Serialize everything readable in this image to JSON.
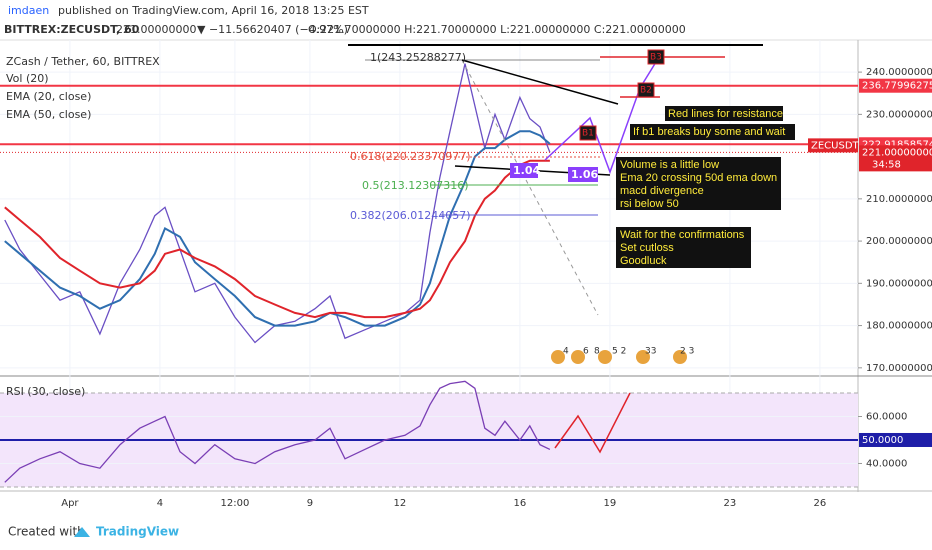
{
  "header": {
    "author": "imdaen",
    "published": "published on TradingView.com, April 16, 2018 13:25 EST",
    "symbol": "BITTREX:ZECUSDT, 60",
    "last": "221.00000000",
    "change": "▼ −11.56620407 (−4.97%)",
    "ohlc": "O:221.70000000 H:221.70000000 L:221.00000000 C:221.00000000"
  },
  "footer": {
    "created": "Created with",
    "brand": "TradingView"
  },
  "chart_data": [
    {
      "type": "line",
      "title": "ZCash / Tether, 60, BITTREX",
      "indicators": [
        "Vol (20)"
      ],
      "x": [
        -1.17,
        -0.67,
        0,
        0.67,
        1.33,
        2,
        2.67,
        3.33,
        3.83,
        4.17,
        4.67,
        5.17,
        5.83,
        6.5,
        7.17,
        7.83,
        8.5,
        9.17,
        9.67,
        10.17,
        10.83,
        11.5,
        12.17,
        12.67,
        13,
        13.33,
        13.67,
        14.17,
        14.5,
        14.83,
        15.17,
        15.5,
        16,
        16.33,
        16.67,
        17
      ],
      "xlim": [
        -1.33,
        27.27
      ],
      "xticks": [
        {
          "value": 1,
          "label": "Apr"
        },
        4,
        {
          "value": 6.5,
          "label": "12:00"
        },
        9,
        12,
        16,
        19,
        23,
        26
      ],
      "ylim": [
        168.3,
        247.6
      ],
      "yticks": [
        {
          "value": 170,
          "label": "170.00000000"
        },
        {
          "value": 180,
          "label": "180.00000000"
        },
        {
          "value": 190,
          "label": "190.00000000"
        },
        {
          "value": 200,
          "label": "200.00000000"
        },
        {
          "value": 210,
          "label": "210.00000000"
        },
        {
          "value": 230,
          "label": "230.00000000"
        },
        {
          "value": 240,
          "label": "240.00000000"
        }
      ],
      "series": [
        {
          "color": "#6a4fc4",
          "values": [
            205,
            198,
            192,
            186,
            188,
            178,
            190,
            198,
            206,
            208,
            198,
            188,
            190,
            182,
            176,
            180,
            181,
            184,
            187,
            177,
            179,
            181,
            183,
            186,
            202,
            215,
            226,
            242,
            232,
            222,
            230,
            224,
            234,
            229,
            227,
            221
          ]
        },
        {
          "name": "EMA (20, close)",
          "color": "#2f6fb0",
          "values": [
            200,
            197,
            193,
            189,
            187,
            184,
            186,
            191,
            197,
            203,
            201,
            195,
            191,
            187,
            182,
            180,
            180,
            181,
            183,
            182,
            180,
            180,
            182,
            185,
            190,
            198,
            206,
            214,
            220,
            222,
            222,
            224,
            226,
            226,
            225,
            223
          ]
        },
        {
          "name": "EMA (50, close)",
          "color": "#e0242b",
          "values": [
            208,
            205,
            201,
            196,
            193,
            190,
            189,
            190,
            193,
            197,
            198,
            196,
            194,
            191,
            187,
            185,
            183,
            182,
            183,
            183,
            182,
            182,
            183,
            184,
            186,
            190,
            195,
            200,
            206,
            210,
            212,
            215,
            218,
            219,
            219,
            219
          ]
        }
      ],
      "levels": [
        {
          "value": 236.77996275,
          "label": "236.77996275",
          "color": "#f23645"
        },
        {
          "value": 222.91858574,
          "label": "222.91858574",
          "color": "#f23645"
        }
      ],
      "last_price": {
        "value": 221,
        "label": "221.00000000",
        "tag": "ZECUSDT",
        "countdown": "34:58"
      },
      "annotations": {
        "fib": [
          "1(243.25288277)",
          "0.618(220.23370977)",
          "0.5(213.12307316)",
          "0.382(206.01244057)"
        ],
        "waves": [
          "1.04",
          "1.06"
        ],
        "boxes": [
          "B3",
          "B2",
          "B1"
        ],
        "notes": [
          "Red lines for resistance",
          "If b1 breaks buy some and wait",
          "Volume is a little low",
          "Ema 20 crossing 50d ema down",
          "macd divergence",
          "rsi below 50",
          "Wait for the confirmations",
          "Set cutloss",
          "Goodluck"
        ],
        "events": [
          "4",
          "6",
          "8",
          "5 2",
          "33",
          "2 3"
        ]
      }
    },
    {
      "type": "line",
      "title": "RSI (30, close)",
      "ylim": [
        28.7,
        76.4
      ],
      "yticks": [
        {
          "value": 60,
          "label": "60.0000"
        },
        {
          "value": 40,
          "label": "40.0000"
        }
      ],
      "band": [
        70,
        30
      ],
      "levels": [
        {
          "value": 50,
          "label": "50.0000",
          "color": "#1e1ea8"
        }
      ],
      "series": [
        {
          "color": "#7a3fb5",
          "values": [
            32,
            38,
            42,
            45,
            40,
            38,
            48,
            55,
            58,
            60,
            45,
            40,
            48,
            42,
            40,
            45,
            48,
            50,
            55,
            42,
            46,
            50,
            52,
            56,
            65,
            72,
            74,
            75,
            72,
            55,
            52,
            58,
            50,
            56,
            48,
            46
          ]
        }
      ]
    }
  ]
}
